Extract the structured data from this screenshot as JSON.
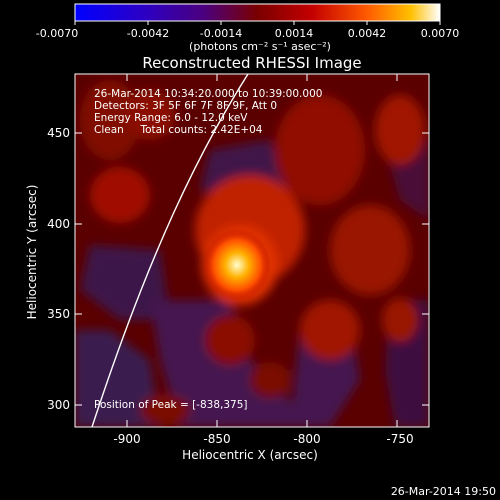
{
  "colorbar": {
    "ticks": [
      "-0.0070",
      "-0.0042",
      "-0.0014",
      "0.0014",
      "0.0042",
      "0.0070"
    ],
    "unit_label": "(photons cm⁻² s⁻¹ asec⁻²)"
  },
  "plot": {
    "title": "Reconstructed RHESSI Image",
    "x_label": "Heliocentric X (arcsec)",
    "y_label": "Heliocentric Y (arcsec)",
    "x_ticks": [
      "-900",
      "-850",
      "-800",
      "-750"
    ],
    "y_ticks": [
      "450",
      "400",
      "350",
      "300"
    ],
    "info_lines": [
      "26-Mar-2014 10:34:20.000 to 10:39:00.000",
      "Detectors: 3F 5F 6F 7F 8F 9F, Att 0",
      "Energy Range: 6.0 - 12.0 keV",
      "Clean     Total counts: 2.42E+04"
    ],
    "peak_text": "Position of Peak = [-838,375]",
    "timestamp": "26-Mar-2014 19:50"
  }
}
